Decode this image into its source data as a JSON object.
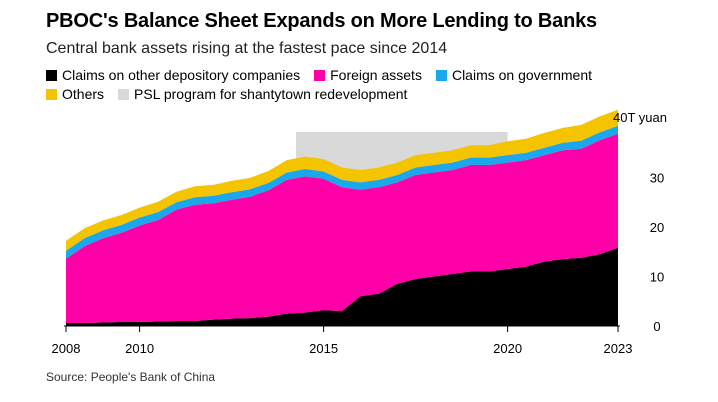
{
  "header": {
    "title": "PBOC's Balance Sheet Expands on More Lending to Banks",
    "subtitle": "Central bank assets rising at the fastest pace since 2014"
  },
  "legend": {
    "items": [
      {
        "label": "Claims on other depository companies",
        "color": "#000000"
      },
      {
        "label": "Foreign assets",
        "color": "#ff00a8"
      },
      {
        "label": "Claims on government",
        "color": "#1aa7ec"
      },
      {
        "label": "Others",
        "color": "#f5c400"
      },
      {
        "label": "PSL program for shantytown redevelopment",
        "color": "#d9d9d9"
      }
    ]
  },
  "source": "Source: People's Bank of China",
  "chart_data": {
    "type": "area",
    "stacked": true,
    "unit_label": "40T yuan",
    "x": [
      2008.0,
      2008.5,
      2009.0,
      2009.5,
      2010.0,
      2010.5,
      2011.0,
      2011.5,
      2012.0,
      2012.5,
      2013.0,
      2013.5,
      2014.0,
      2014.5,
      2015.0,
      2015.5,
      2016.0,
      2016.5,
      2017.0,
      2017.5,
      2018.0,
      2018.5,
      2019.0,
      2019.5,
      2020.0,
      2020.5,
      2021.0,
      2021.5,
      2022.0,
      2022.5,
      2023.0
    ],
    "series": [
      {
        "name": "Claims on other depository companies",
        "color": "#000000",
        "values": [
          0.6,
          0.6,
          0.7,
          0.8,
          0.8,
          0.9,
          1.0,
          1.0,
          1.3,
          1.5,
          1.6,
          1.9,
          2.5,
          2.7,
          3.2,
          3.0,
          6.0,
          6.5,
          8.5,
          9.5,
          10.0,
          10.5,
          11.0,
          11.0,
          11.5,
          12.0,
          13.0,
          13.5,
          13.8,
          14.5,
          15.8
        ]
      },
      {
        "name": "Foreign assets",
        "color": "#ff00a8",
        "values": [
          13.0,
          15.5,
          17.0,
          18.0,
          19.5,
          20.5,
          22.5,
          23.5,
          23.5,
          24.0,
          24.5,
          25.5,
          27.0,
          27.5,
          26.5,
          25.0,
          21.5,
          21.5,
          20.5,
          21.0,
          21.0,
          21.0,
          21.5,
          21.5,
          21.5,
          21.5,
          21.5,
          22.0,
          22.0,
          23.0,
          23.0
        ]
      },
      {
        "name": "Claims on government",
        "color": "#1aa7ec",
        "values": [
          1.6,
          1.6,
          1.6,
          1.6,
          1.6,
          1.6,
          1.5,
          1.5,
          1.5,
          1.5,
          1.5,
          1.5,
          1.5,
          1.5,
          1.5,
          1.5,
          1.5,
          1.5,
          1.5,
          1.5,
          1.5,
          1.5,
          1.5,
          1.5,
          1.5,
          1.5,
          1.5,
          1.5,
          1.6,
          1.6,
          1.6
        ]
      },
      {
        "name": "Others",
        "color": "#f5c400",
        "values": [
          2.0,
          2.0,
          2.0,
          2.0,
          2.0,
          2.1,
          2.1,
          2.2,
          2.2,
          2.3,
          2.3,
          2.4,
          2.5,
          2.5,
          2.5,
          2.5,
          2.5,
          2.5,
          2.5,
          2.5,
          2.5,
          2.5,
          2.5,
          2.5,
          2.8,
          2.8,
          3.0,
          3.0,
          3.2,
          3.2,
          3.3
        ]
      }
    ],
    "highlight_band": {
      "label": "PSL program for shantytown redevelopment",
      "x": [
        2014.25,
        2020.0
      ],
      "color": "#d9d9d9"
    },
    "ylim": [
      0,
      42
    ],
    "xlim": [
      2008.0,
      2023.0
    ],
    "y_ticks": [
      {
        "value": 0,
        "label": "0"
      },
      {
        "value": 10,
        "label": "10"
      },
      {
        "value": 20,
        "label": "20"
      },
      {
        "value": 30,
        "label": "30"
      },
      {
        "value": 40,
        "label": "40T yuan"
      }
    ],
    "x_ticks": [
      {
        "value": 2008,
        "label": "2008"
      },
      {
        "value": 2010,
        "label": "2010"
      },
      {
        "value": 2015,
        "label": "2015"
      },
      {
        "value": 2020,
        "label": "2020"
      },
      {
        "value": 2023,
        "label": "2023"
      }
    ],
    "grid": false
  }
}
